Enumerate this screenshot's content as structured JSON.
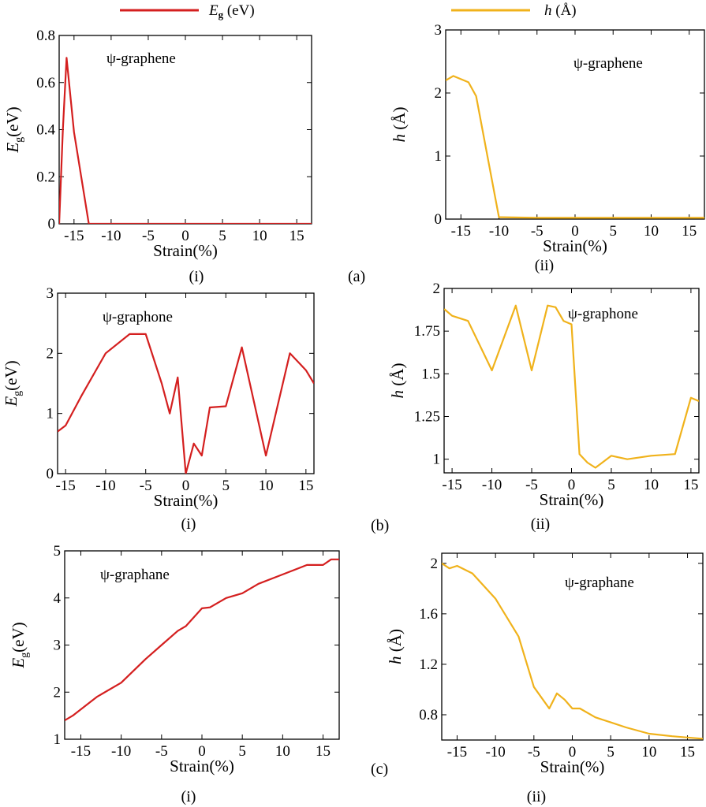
{
  "legend": {
    "entries": [
      {
        "sym": "E",
        "sub": "g",
        "unit": " (eV)",
        "color": "#d41f1f"
      },
      {
        "sym": "h",
        "sub": "",
        "unit": " (Å)",
        "color": "#f0b21b"
      }
    ]
  },
  "row_labels": [
    "(a)",
    "(b)",
    "(c)"
  ],
  "panel_labels": [
    "(i)",
    "(ii)"
  ],
  "chart_data": [
    {
      "id": "a-i",
      "type": "line",
      "title": "ψ-graphene",
      "xlabel": "Strain(%)",
      "ylabel_sym": "E",
      "ylabel_sub": "g",
      "ylabel_unit": "(eV)",
      "xlim": [
        -17,
        17
      ],
      "ylim": [
        0,
        0.8
      ],
      "xticks": [
        -15,
        -10,
        -5,
        0,
        5,
        10,
        15
      ],
      "yticks": [
        0,
        0.2,
        0.4,
        0.6,
        0.8
      ],
      "ytick_labels": [
        "0",
        "0.2",
        "0.4",
        "0.6",
        "0.8"
      ],
      "color": "#d41f1f",
      "x": [
        -17,
        -16.5,
        -16,
        -15,
        -13,
        -10,
        -5,
        0,
        5,
        10,
        15,
        17
      ],
      "y": [
        0,
        0.4,
        0.705,
        0.39,
        0,
        0,
        0,
        0,
        0,
        0,
        0,
        0
      ]
    },
    {
      "id": "a-ii",
      "type": "line",
      "title": "ψ-graphene",
      "xlabel": "Strain(%)",
      "ylabel_sym": "h",
      "ylabel_sub": "",
      "ylabel_unit": "(Å)",
      "xlim": [
        -17,
        17
      ],
      "ylim": [
        0,
        3
      ],
      "xticks": [
        -15,
        -10,
        -5,
        0,
        5,
        10,
        15
      ],
      "yticks": [
        0,
        1,
        2,
        3
      ],
      "ytick_labels": [
        "0",
        "1",
        "2",
        "3"
      ],
      "color": "#f0b21b",
      "x": [
        -17,
        -16,
        -14,
        -13,
        -10,
        -5,
        0,
        5,
        10,
        15,
        17
      ],
      "y": [
        2.2,
        2.27,
        2.17,
        1.95,
        0.03,
        0.02,
        0.02,
        0.02,
        0.02,
        0.02,
        0.02
      ]
    },
    {
      "id": "b-i",
      "type": "line",
      "title": "ψ-graphone",
      "xlabel": "Strain(%)",
      "ylabel_sym": "E",
      "ylabel_sub": "g",
      "ylabel_unit": "(eV)",
      "xlim": [
        -16,
        16
      ],
      "ylim": [
        0,
        3
      ],
      "xticks": [
        -15,
        -10,
        -5,
        0,
        5,
        10,
        15
      ],
      "yticks": [
        0,
        1,
        2,
        3
      ],
      "ytick_labels": [
        "0",
        "1",
        "2",
        "3"
      ],
      "color": "#d41f1f",
      "x": [
        -16,
        -15,
        -13,
        -10,
        -7,
        -5,
        -3,
        -2,
        -1,
        0,
        1,
        2,
        3,
        5,
        7,
        10,
        13,
        15,
        16
      ],
      "y": [
        0.7,
        0.8,
        1.3,
        2.0,
        2.32,
        2.32,
        1.5,
        1.0,
        1.6,
        0.0,
        0.5,
        0.3,
        1.1,
        1.12,
        2.1,
        0.3,
        2.0,
        1.72,
        1.5
      ]
    },
    {
      "id": "b-ii",
      "type": "line",
      "title": "ψ-graphone",
      "xlabel": "Strain(%)",
      "ylabel_sym": "h",
      "ylabel_sub": "",
      "ylabel_unit": "(Å)",
      "xlim": [
        -16,
        16
      ],
      "ylim": [
        0.92,
        2.0
      ],
      "xticks": [
        -15,
        -10,
        -5,
        0,
        5,
        10,
        15
      ],
      "yticks": [
        1,
        1.25,
        1.5,
        1.75,
        2
      ],
      "ytick_labels": [
        "1",
        "1.25",
        "1.5",
        "1.75",
        "2"
      ],
      "color": "#f0b21b",
      "x": [
        -16,
        -15,
        -13,
        -10,
        -7,
        -5,
        -3,
        -2,
        -1,
        0,
        1,
        2,
        3,
        5,
        7,
        10,
        13,
        15,
        16
      ],
      "y": [
        1.88,
        1.84,
        1.81,
        1.52,
        1.9,
        1.52,
        1.9,
        1.89,
        1.81,
        1.79,
        1.03,
        0.98,
        0.95,
        1.02,
        1.0,
        1.02,
        1.03,
        1.36,
        1.34
      ]
    },
    {
      "id": "c-i",
      "type": "line",
      "title": "ψ-graphane",
      "xlabel": "Strain(%)",
      "ylabel_sym": "E",
      "ylabel_sub": "g",
      "ylabel_unit": "(eV)",
      "xlim": [
        -17,
        17
      ],
      "ylim": [
        1,
        5
      ],
      "xticks": [
        -15,
        -10,
        -5,
        0,
        5,
        10,
        15
      ],
      "yticks": [
        1,
        2,
        3,
        4,
        5
      ],
      "ytick_labels": [
        "1",
        "2",
        "3",
        "4",
        "5"
      ],
      "color": "#d41f1f",
      "x": [
        -17,
        -16,
        -13,
        -10,
        -7,
        -5,
        -3,
        -2,
        0,
        1,
        3,
        5,
        7,
        10,
        13,
        15,
        16,
        17
      ],
      "y": [
        1.4,
        1.5,
        1.9,
        2.2,
        2.7,
        3.0,
        3.3,
        3.4,
        3.78,
        3.8,
        4.0,
        4.1,
        4.3,
        4.5,
        4.7,
        4.7,
        4.82,
        4.82
      ]
    },
    {
      "id": "c-ii",
      "type": "line",
      "title": "ψ-graphane",
      "xlabel": "Strain(%)",
      "ylabel_sym": "h",
      "ylabel_sub": "",
      "ylabel_unit": "(Å)",
      "xlim": [
        -17,
        17
      ],
      "ylim": [
        0.6,
        2.08
      ],
      "xticks": [
        -15,
        -10,
        -5,
        0,
        5,
        10,
        15
      ],
      "yticks": [
        0.8,
        1.2,
        1.6,
        2.0
      ],
      "ytick_labels": [
        "0.8",
        "1.2",
        "1.6",
        "2"
      ],
      "color": "#f0b21b",
      "x": [
        -17,
        -16,
        -15,
        -13,
        -10,
        -7,
        -5,
        -3,
        -2,
        -1,
        0,
        1,
        3,
        5,
        7,
        10,
        13,
        15,
        17
      ],
      "y": [
        2.0,
        1.96,
        1.98,
        1.92,
        1.72,
        1.42,
        1.02,
        0.85,
        0.97,
        0.92,
        0.85,
        0.85,
        0.78,
        0.74,
        0.7,
        0.65,
        0.63,
        0.62,
        0.61
      ]
    }
  ]
}
